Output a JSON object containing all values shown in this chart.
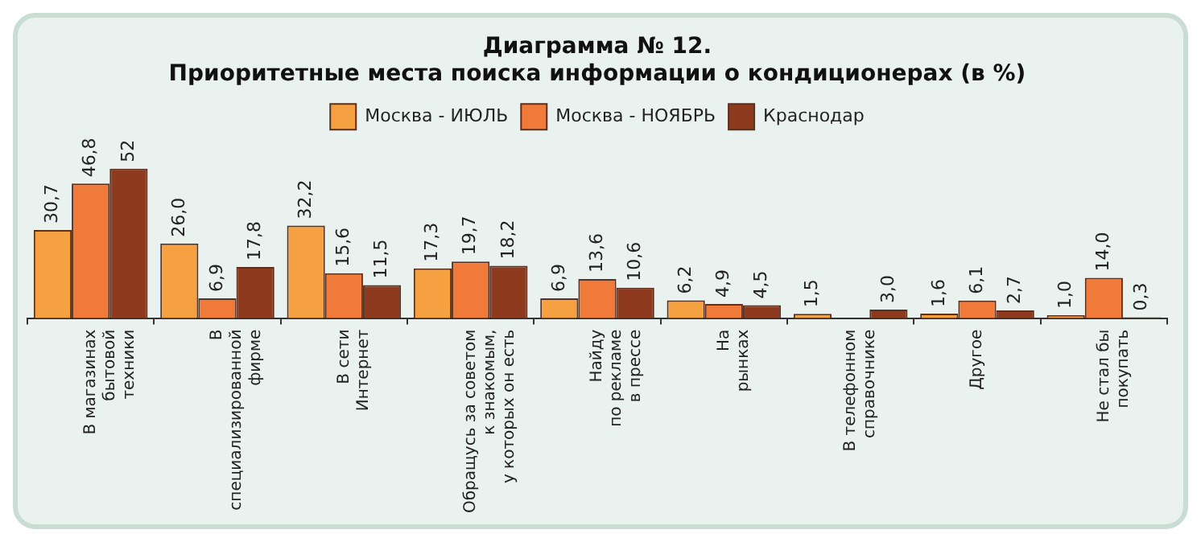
{
  "chart_data": {
    "type": "bar",
    "title": "Диаграмма № 12.\nПриоритетные места поиска информации о кондиционерах (в %)",
    "categories": [
      "В магазинах\nбытовой\nтехники",
      "В\nспециализированной\nфирме",
      "В сети\nИнтернет",
      "Обращусь за советом\nк знакомым,\nу которых он есть",
      "Найду\nпо рекламе\nв прессе",
      "На\nрынках",
      "В телефонном\nсправочнике",
      "Другое",
      "Не стал бы\nпокупать"
    ],
    "series": [
      {
        "name": "Москва - ИЮЛЬ",
        "color": "#f5a142",
        "values": [
          30.7,
          26.0,
          32.2,
          17.3,
          6.9,
          6.2,
          1.5,
          1.6,
          1.0
        ],
        "value_labels": [
          "30,7",
          "26,0",
          "32,2",
          "17,3",
          "6,9",
          "6,2",
          "1,5",
          "1,6",
          "1,0"
        ]
      },
      {
        "name": "Москва - НОЯБРЬ",
        "color": "#f07a3a",
        "values": [
          46.8,
          6.9,
          15.6,
          19.7,
          13.6,
          4.9,
          null,
          6.1,
          14.0
        ],
        "value_labels": [
          "46,8",
          "6,9",
          "15,6",
          "19,7",
          "13,6",
          "4,9",
          null,
          "6,1",
          "14,0"
        ]
      },
      {
        "name": "Краснодар",
        "color": "#8e3a1e",
        "values": [
          52,
          17.8,
          11.5,
          18.2,
          10.6,
          4.5,
          3.0,
          2.7,
          0.3
        ],
        "value_labels": [
          "52",
          "17,8",
          "11,5",
          "18,2",
          "10,6",
          "4,5",
          "3,0",
          "2,7",
          "0,3"
        ]
      }
    ],
    "legend": "top"
  }
}
